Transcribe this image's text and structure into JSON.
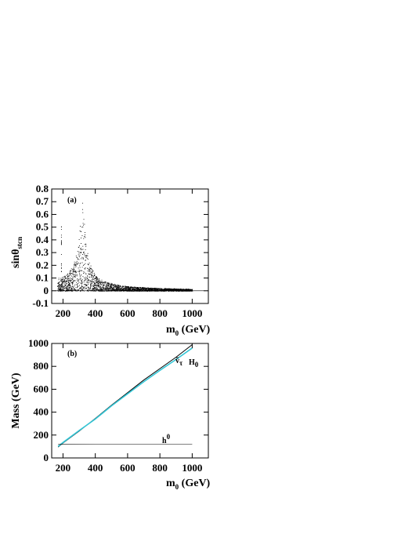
{
  "chart_data": [
    {
      "type": "scatter",
      "panel_label": "(a)",
      "ylabel_base": "sinθ",
      "ylabel_sub": "stcn",
      "xlabel_base": "m",
      "xlabel_sub": "0",
      "xlabel_unit": " (GeV)",
      "xlim": [
        130,
        1100
      ],
      "ylim": [
        -0.1,
        0.8
      ],
      "xticks": [
        200,
        400,
        600,
        800,
        1000
      ],
      "yticks": [
        -0.1,
        0,
        0.1,
        0.2,
        0.3,
        0.4,
        0.5,
        0.6,
        0.7,
        0.8
      ],
      "points_envelope": {
        "x": [
          165,
          180,
          200,
          220,
          240,
          260,
          280,
          300,
          310,
          320,
          330,
          340,
          360,
          380,
          400,
          450,
          500,
          550,
          600,
          700,
          800,
          900,
          1000
        ],
        "y_max": [
          0.12,
          0.1,
          0.11,
          0.13,
          0.16,
          0.2,
          0.28,
          0.45,
          0.58,
          0.7,
          0.55,
          0.38,
          0.24,
          0.17,
          0.12,
          0.08,
          0.06,
          0.045,
          0.035,
          0.028,
          0.022,
          0.018,
          0.015
        ],
        "y_min": [
          0,
          0,
          0,
          0,
          0,
          0,
          0,
          0,
          0,
          0,
          0,
          0,
          0,
          0,
          0,
          0,
          0,
          0,
          0,
          0,
          0,
          0,
          0
        ]
      }
    },
    {
      "type": "line",
      "panel_label": "(b)",
      "ylabel": "Mass (GeV)",
      "xlabel_base": "m",
      "xlabel_sub": "0",
      "xlabel_unit": " (GeV)",
      "xlim": [
        130,
        1100
      ],
      "ylim": [
        0,
        1000
      ],
      "xticks": [
        200,
        400,
        600,
        800,
        1000
      ],
      "yticks": [
        0,
        200,
        400,
        600,
        800,
        1000
      ],
      "series": [
        {
          "name": "ṽτ",
          "label_base": "ṽ",
          "label_sub": "τ",
          "color": "#000000",
          "x": [
            170,
            200,
            300,
            400,
            500,
            600,
            700,
            800,
            900,
            1000
          ],
          "y": [
            95,
            130,
            235,
            345,
            460,
            570,
            680,
            780,
            880,
            990
          ]
        },
        {
          "name": "H0",
          "label_base": "H",
          "label_sub": "0",
          "color": "#33c6d6",
          "x": [
            170,
            200,
            300,
            400,
            500,
            600,
            700,
            800,
            900,
            1000
          ],
          "y": [
            100,
            135,
            240,
            340,
            455,
            560,
            665,
            765,
            860,
            960
          ]
        },
        {
          "name": "h0",
          "label_base": "h",
          "label_sup": "0",
          "color": "#000000",
          "x": [
            170,
            200,
            400,
            600,
            800,
            1000
          ],
          "y": [
            118,
            119,
            120,
            120,
            120,
            120
          ]
        }
      ]
    }
  ],
  "colors": {
    "axis": "#000000",
    "scatter": "#000000",
    "higgs_line": "#33c6d6"
  }
}
